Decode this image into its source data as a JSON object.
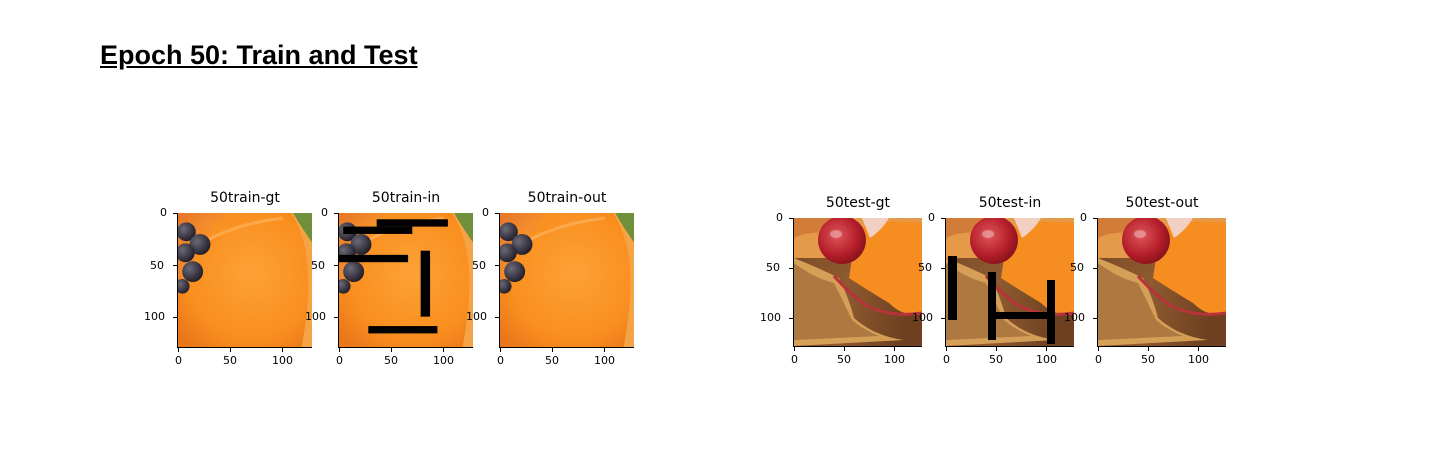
{
  "heading": "Epoch 50: Train and Test",
  "panels": [
    {
      "title": "50train-gt",
      "yticks": [
        "0",
        "50",
        "100"
      ],
      "xticks": [
        "0",
        "50",
        "100"
      ],
      "image": "orange-peach-slice-with-grapes"
    },
    {
      "title": "50train-in",
      "yticks": [
        "0",
        "50",
        "100"
      ],
      "xticks": [
        "0",
        "50",
        "100"
      ],
      "image": "orange-peach-slice-with-grapes-masked"
    },
    {
      "title": "50train-out",
      "yticks": [
        "0",
        "50",
        "100"
      ],
      "xticks": [
        "0",
        "50",
        "100"
      ],
      "image": "orange-peach-slice-with-grapes"
    },
    {
      "title": "50test-gt",
      "yticks": [
        "0",
        "50",
        "100"
      ],
      "xticks": [
        "0",
        "50",
        "100"
      ],
      "image": "cherry-tart-on-wood"
    },
    {
      "title": "50test-in",
      "yticks": [
        "0",
        "50",
        "100"
      ],
      "xticks": [
        "0",
        "50",
        "100"
      ],
      "image": "cherry-tart-on-wood-masked"
    },
    {
      "title": "50test-out",
      "yticks": [
        "0",
        "50",
        "100"
      ],
      "xticks": [
        "0",
        "50",
        "100"
      ],
      "image": "cherry-tart-on-wood"
    }
  ]
}
